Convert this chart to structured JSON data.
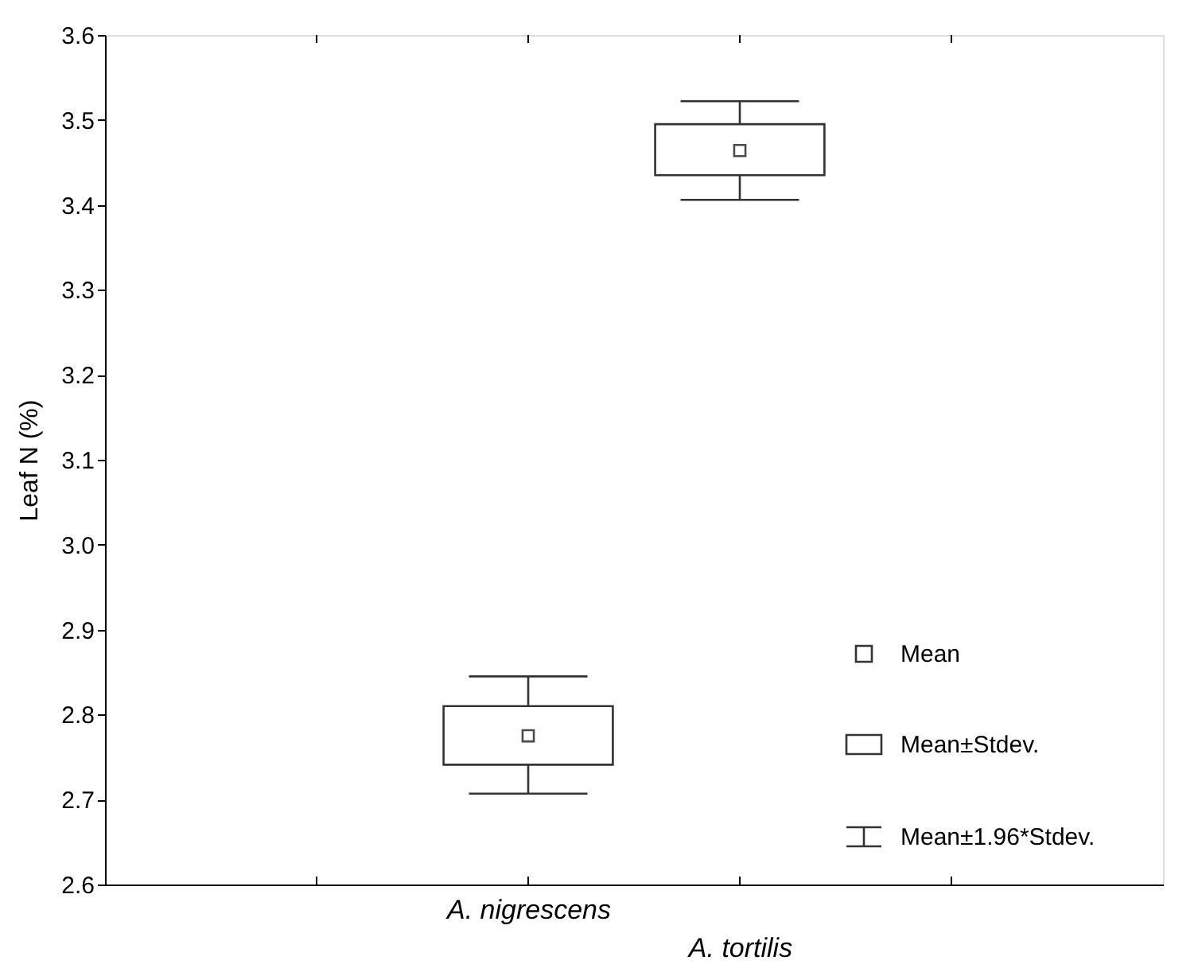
{
  "chart_data": {
    "type": "box",
    "ylabel": "Leaf N (%)",
    "categories": [
      "A. nigrescens",
      "A. tortilis"
    ],
    "boxes": [
      {
        "low": 2.707,
        "q1": 2.741,
        "median": null,
        "q3": 2.81,
        "high": 2.845,
        "mean": 2.775
      },
      {
        "low": 3.406,
        "q1": 3.435,
        "median": null,
        "q3": 3.495,
        "high": 3.522,
        "mean": 3.464
      }
    ],
    "ylim": [
      2.6,
      3.6
    ],
    "yticks": [
      2.6,
      2.7,
      2.8,
      2.9,
      {
        "value": 3,
        "label": "3.0"
      },
      3.1,
      3.2,
      3.3,
      3.4,
      3.5,
      3.6
    ],
    "annotations": [
      "Mean",
      "Mean±Stdev.",
      "Mean±1.96*Stdev."
    ],
    "grid": false
  }
}
